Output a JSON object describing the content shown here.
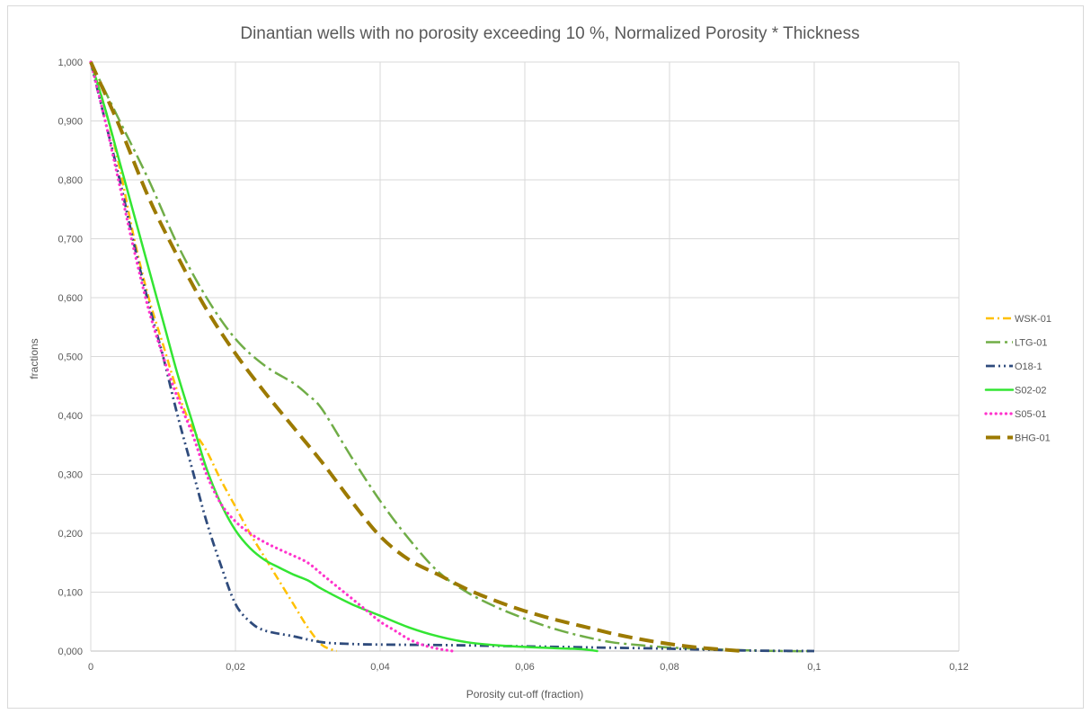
{
  "chart_data": {
    "type": "line",
    "title": "Dinantian wells with no porosity exceeding 10 %, Normalized Porosity * Thickness",
    "xlabel": "Porosity cut-off (fraction)",
    "ylabel": "fractions",
    "xlim": [
      0,
      0.12
    ],
    "ylim": [
      0,
      1.0
    ],
    "x_ticks": [
      "0",
      "0,02",
      "0,04",
      "0,06",
      "0,08",
      "0,1",
      "0,12"
    ],
    "y_ticks": [
      "0,000",
      "0,100",
      "0,200",
      "0,300",
      "0,400",
      "0,500",
      "0,600",
      "0,700",
      "0,800",
      "0,900",
      "1,000"
    ],
    "grid": "vertical and horizontal",
    "legend_position": "right",
    "series": [
      {
        "name": "WSK-01",
        "color": "#ffc000",
        "dash": "dash-dot",
        "points": [
          [
            0,
            1.0
          ],
          [
            0.002,
            0.92
          ],
          [
            0.004,
            0.82
          ],
          [
            0.006,
            0.7
          ],
          [
            0.008,
            0.6
          ],
          [
            0.01,
            0.52
          ],
          [
            0.012,
            0.44
          ],
          [
            0.014,
            0.38
          ],
          [
            0.016,
            0.34
          ],
          [
            0.018,
            0.29
          ],
          [
            0.02,
            0.245
          ],
          [
            0.022,
            0.2
          ],
          [
            0.024,
            0.16
          ],
          [
            0.026,
            0.12
          ],
          [
            0.028,
            0.08
          ],
          [
            0.03,
            0.04
          ],
          [
            0.032,
            0.01
          ],
          [
            0.034,
            0.0
          ]
        ]
      },
      {
        "name": "LTG-01",
        "color": "#70ad47",
        "dash": "long-dash-dot",
        "points": [
          [
            0,
            1.0
          ],
          [
            0.004,
            0.9
          ],
          [
            0.008,
            0.8
          ],
          [
            0.012,
            0.69
          ],
          [
            0.016,
            0.6
          ],
          [
            0.02,
            0.53
          ],
          [
            0.024,
            0.485
          ],
          [
            0.028,
            0.455
          ],
          [
            0.03,
            0.435
          ],
          [
            0.032,
            0.41
          ],
          [
            0.036,
            0.33
          ],
          [
            0.04,
            0.255
          ],
          [
            0.044,
            0.19
          ],
          [
            0.048,
            0.135
          ],
          [
            0.052,
            0.1
          ],
          [
            0.056,
            0.075
          ],
          [
            0.06,
            0.055
          ],
          [
            0.064,
            0.038
          ],
          [
            0.068,
            0.025
          ],
          [
            0.072,
            0.015
          ],
          [
            0.076,
            0.01
          ],
          [
            0.08,
            0.006
          ],
          [
            0.088,
            0.002
          ],
          [
            0.096,
            0.0
          ],
          [
            0.1,
            0.0
          ]
        ]
      },
      {
        "name": "O18-1",
        "color": "#2f4b7c",
        "dash": "dash-dot-dot",
        "points": [
          [
            0,
            1.0
          ],
          [
            0.002,
            0.9
          ],
          [
            0.004,
            0.8
          ],
          [
            0.006,
            0.69
          ],
          [
            0.008,
            0.59
          ],
          [
            0.01,
            0.5
          ],
          [
            0.012,
            0.4
          ],
          [
            0.014,
            0.31
          ],
          [
            0.016,
            0.22
          ],
          [
            0.018,
            0.145
          ],
          [
            0.02,
            0.08
          ],
          [
            0.022,
            0.05
          ],
          [
            0.024,
            0.035
          ],
          [
            0.028,
            0.025
          ],
          [
            0.032,
            0.015
          ],
          [
            0.036,
            0.012
          ],
          [
            0.04,
            0.011
          ],
          [
            0.05,
            0.01
          ],
          [
            0.06,
            0.008
          ],
          [
            0.07,
            0.006
          ],
          [
            0.08,
            0.004
          ],
          [
            0.09,
            0.001
          ],
          [
            0.1,
            0.0
          ]
        ]
      },
      {
        "name": "S02-02",
        "color": "#33e533",
        "dash": "solid",
        "points": [
          [
            0,
            1.0
          ],
          [
            0.002,
            0.92
          ],
          [
            0.004,
            0.83
          ],
          [
            0.006,
            0.74
          ],
          [
            0.008,
            0.65
          ],
          [
            0.01,
            0.56
          ],
          [
            0.012,
            0.47
          ],
          [
            0.014,
            0.39
          ],
          [
            0.016,
            0.31
          ],
          [
            0.018,
            0.25
          ],
          [
            0.02,
            0.205
          ],
          [
            0.022,
            0.175
          ],
          [
            0.024,
            0.155
          ],
          [
            0.026,
            0.142
          ],
          [
            0.028,
            0.13
          ],
          [
            0.03,
            0.12
          ],
          [
            0.032,
            0.105
          ],
          [
            0.036,
            0.08
          ],
          [
            0.04,
            0.06
          ],
          [
            0.044,
            0.04
          ],
          [
            0.048,
            0.025
          ],
          [
            0.052,
            0.015
          ],
          [
            0.056,
            0.01
          ],
          [
            0.06,
            0.007
          ],
          [
            0.064,
            0.005
          ],
          [
            0.068,
            0.003
          ],
          [
            0.07,
            0.0
          ]
        ]
      },
      {
        "name": "S05-01",
        "color": "#ff33cc",
        "dash": "dotted",
        "points": [
          [
            0,
            1.0
          ],
          [
            0.002,
            0.9
          ],
          [
            0.004,
            0.79
          ],
          [
            0.006,
            0.68
          ],
          [
            0.008,
            0.58
          ],
          [
            0.01,
            0.5
          ],
          [
            0.012,
            0.43
          ],
          [
            0.014,
            0.37
          ],
          [
            0.016,
            0.3
          ],
          [
            0.018,
            0.25
          ],
          [
            0.02,
            0.22
          ],
          [
            0.022,
            0.2
          ],
          [
            0.024,
            0.185
          ],
          [
            0.026,
            0.173
          ],
          [
            0.028,
            0.162
          ],
          [
            0.03,
            0.15
          ],
          [
            0.032,
            0.13
          ],
          [
            0.034,
            0.11
          ],
          [
            0.036,
            0.09
          ],
          [
            0.038,
            0.07
          ],
          [
            0.04,
            0.05
          ],
          [
            0.042,
            0.035
          ],
          [
            0.044,
            0.02
          ],
          [
            0.046,
            0.01
          ],
          [
            0.048,
            0.004
          ],
          [
            0.05,
            0.0
          ]
        ]
      },
      {
        "name": "BHG-01",
        "color": "#9c7a00",
        "dash": "long-dash",
        "points": [
          [
            0,
            1.0
          ],
          [
            0.004,
            0.89
          ],
          [
            0.008,
            0.77
          ],
          [
            0.012,
            0.67
          ],
          [
            0.016,
            0.58
          ],
          [
            0.02,
            0.505
          ],
          [
            0.024,
            0.44
          ],
          [
            0.028,
            0.38
          ],
          [
            0.032,
            0.32
          ],
          [
            0.036,
            0.255
          ],
          [
            0.04,
            0.195
          ],
          [
            0.044,
            0.155
          ],
          [
            0.048,
            0.13
          ],
          [
            0.052,
            0.105
          ],
          [
            0.056,
            0.085
          ],
          [
            0.06,
            0.068
          ],
          [
            0.064,
            0.054
          ],
          [
            0.068,
            0.042
          ],
          [
            0.072,
            0.03
          ],
          [
            0.076,
            0.02
          ],
          [
            0.08,
            0.012
          ],
          [
            0.084,
            0.006
          ],
          [
            0.088,
            0.002
          ],
          [
            0.09,
            0.0
          ]
        ]
      }
    ]
  }
}
